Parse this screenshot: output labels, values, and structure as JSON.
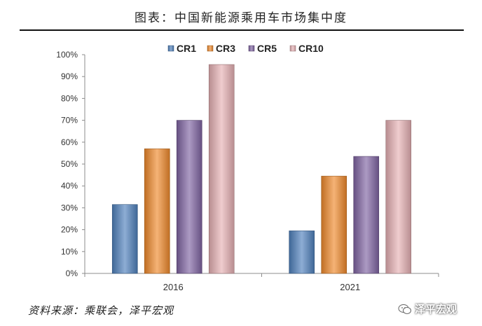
{
  "chart_title": "图表：中国新能源乘用车市场集中度",
  "source_note": "资料来源：乘联会，泽平宏观",
  "watermark": "泽平宏观",
  "chart_data": {
    "type": "bar",
    "categories": [
      "2016",
      "2021"
    ],
    "series": [
      {
        "name": "CR1",
        "values": [
          31.5,
          19.5
        ],
        "color": "#4f81bd"
      },
      {
        "name": "CR3",
        "values": [
          57.0,
          44.5
        ],
        "color": "#f08a2c"
      },
      {
        "name": "CR5",
        "values": [
          70.0,
          53.5
        ],
        "color": "#8064a2"
      },
      {
        "name": "CR10",
        "values": [
          95.5,
          70.0
        ],
        "color": "#e6b0b4"
      }
    ],
    "ylim": [
      0,
      100
    ],
    "yticks": [
      "0%",
      "10%",
      "20%",
      "30%",
      "40%",
      "50%",
      "60%",
      "70%",
      "80%",
      "90%",
      "100%"
    ],
    "legend_position": "top",
    "grid": false
  }
}
